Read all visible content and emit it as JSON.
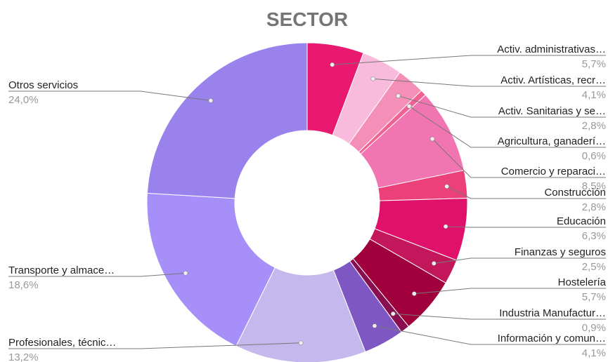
{
  "chart_data": {
    "type": "donut",
    "title": "SECTOR",
    "categories": [
      "Activ. administrativas…",
      "Activ. Artísticas, recr…",
      "Activ. Sanitarias y se…",
      "Agricultura, ganaderí…",
      "Comercio y reparaci…",
      "Construcción",
      "Educación",
      "Finanzas y seguros",
      "Hostelería",
      "Industria Manufactur…",
      "Información y comun…",
      "Profesionales, técnic…",
      "Transporte y almace…",
      "Otros servicios"
    ],
    "values": [
      5.7,
      4.1,
      2.8,
      0.6,
      8.5,
      2.8,
      6.3,
      2.5,
      5.7,
      0.9,
      4.1,
      13.2,
      18.6,
      24.0
    ],
    "value_labels": [
      "5,7%",
      "4,1%",
      "2,8%",
      "0,6%",
      "8,5%",
      "2,8%",
      "6,3%",
      "2,5%",
      "5,7%",
      "0,9%",
      "4,1%",
      "13,2%",
      "18,6%",
      "24,0%"
    ],
    "colors": [
      "#e8196e",
      "#f8bbdc",
      "#f48fb8",
      "#f06292",
      "#f075b0",
      "#ec407a",
      "#e0116b",
      "#c2185b",
      "#a0003c",
      "#880e4f",
      "#7e57c2",
      "#c5b8ec",
      "#a68ff8",
      "#9a82ec"
    ]
  }
}
